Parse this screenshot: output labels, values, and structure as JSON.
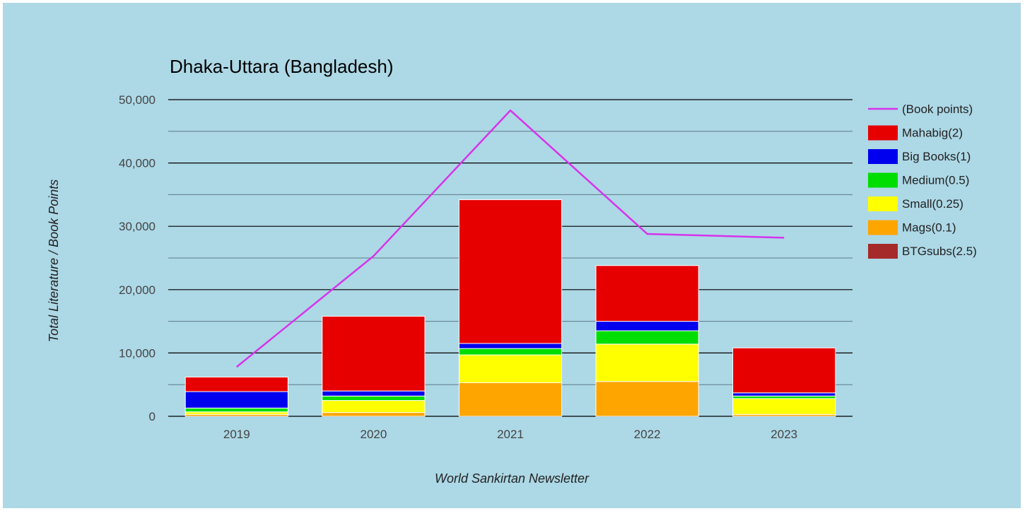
{
  "chart_data": {
    "type": "bar",
    "stacked": true,
    "title": "Dhaka-Uttara (Bangladesh)",
    "xlabel": "World Sankirtan Newsletter",
    "ylabel": "Total Literature / Book Points",
    "ylim": [
      0,
      50000
    ],
    "yticks": [
      0,
      10000,
      20000,
      30000,
      40000,
      50000
    ],
    "ytick_labels": [
      "0",
      "10,000",
      "20,000",
      "30,000",
      "40,000",
      "50,000"
    ],
    "grid": true,
    "legend_position": "right",
    "categories": [
      "2019",
      "2020",
      "2021",
      "2022",
      "2023"
    ],
    "series": [
      {
        "name": "BTGsubs(2.5)",
        "color": "#a52a2a",
        "values": [
          0,
          0,
          0,
          0,
          0
        ]
      },
      {
        "name": "Mags(0.1)",
        "color": "#ffa500",
        "values": [
          300,
          600,
          5300,
          5500,
          300
        ]
      },
      {
        "name": "Small(0.25)",
        "color": "#ffff00",
        "values": [
          400,
          1900,
          4400,
          5900,
          2500
        ]
      },
      {
        "name": "Medium(0.5)",
        "color": "#00dd00",
        "values": [
          600,
          700,
          1000,
          2100,
          400
        ]
      },
      {
        "name": "Big Books(1)",
        "color": "#0000ee",
        "values": [
          2600,
          800,
          800,
          1500,
          500
        ]
      },
      {
        "name": "Mahabig(2)",
        "color": "#e60000",
        "values": [
          2300,
          11800,
          22700,
          8800,
          7100
        ]
      }
    ],
    "line_series": {
      "name": "(Book points)",
      "color": "#d633ec",
      "values": [
        7800,
        25300,
        48300,
        28800,
        28200
      ]
    },
    "legend_order": [
      "(Book points)",
      "Mahabig(2)",
      "Big Books(1)",
      "Medium(0.5)",
      "Small(0.25)",
      "Mags(0.1)",
      "BTGsubs(2.5)"
    ]
  }
}
